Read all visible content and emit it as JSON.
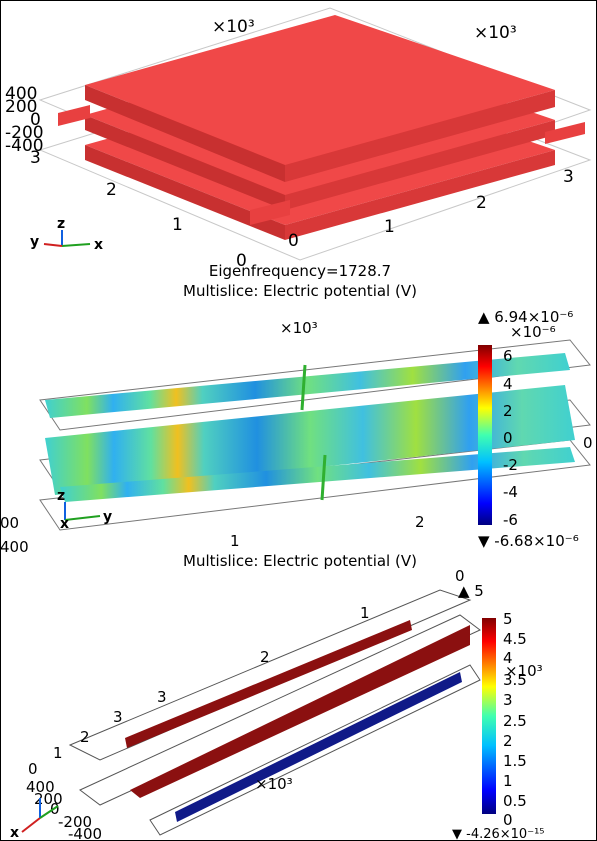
{
  "panel1": {
    "x_multiplier": "×10³",
    "y_multiplier": "×10³",
    "z_ticks": [
      "400",
      "200",
      "0",
      "-200",
      "-400"
    ],
    "y_ticks": [
      "3",
      "2",
      "1",
      "0"
    ],
    "x_ticks": [
      "0",
      "1",
      "2",
      "3"
    ],
    "triad": [
      "y",
      "z",
      "x"
    ],
    "title": "Eigenfrequency=1728.7"
  },
  "panel2": {
    "title": "Multislice: Electric potential (V)",
    "multiplier": "×10³",
    "max_label": "▲ 6.94×10⁻⁶",
    "colorbar_multiplier": "×10⁻⁶",
    "colorbar_ticks": [
      "6",
      "4",
      "2",
      "0",
      "-2",
      "-4",
      "-6"
    ],
    "min_label": "▼ -6.68×10⁻⁶",
    "axis_labels": [
      "00",
      "400",
      "1",
      "2",
      "0"
    ],
    "triad": [
      "z",
      "x",
      "y"
    ]
  },
  "panel3": {
    "title": "Multislice: Electric potential (V)",
    "top_label": "0",
    "max_label": "▲ 5",
    "colorbar_ticks": [
      "5",
      "4.5",
      "4",
      "3.5",
      "3",
      "2.5",
      "2",
      "1.5",
      "1",
      "0.5",
      "0"
    ],
    "colorbar_multiplier": "×10³",
    "min_label": "▼ -4.26×10⁻¹⁵",
    "multiplier": "×10³",
    "axis_labels": [
      "1",
      "2",
      "3",
      "3",
      "2",
      "1",
      "0",
      "400",
      "200",
      "0",
      "-200",
      "-400"
    ],
    "triad": [
      "x"
    ]
  }
}
